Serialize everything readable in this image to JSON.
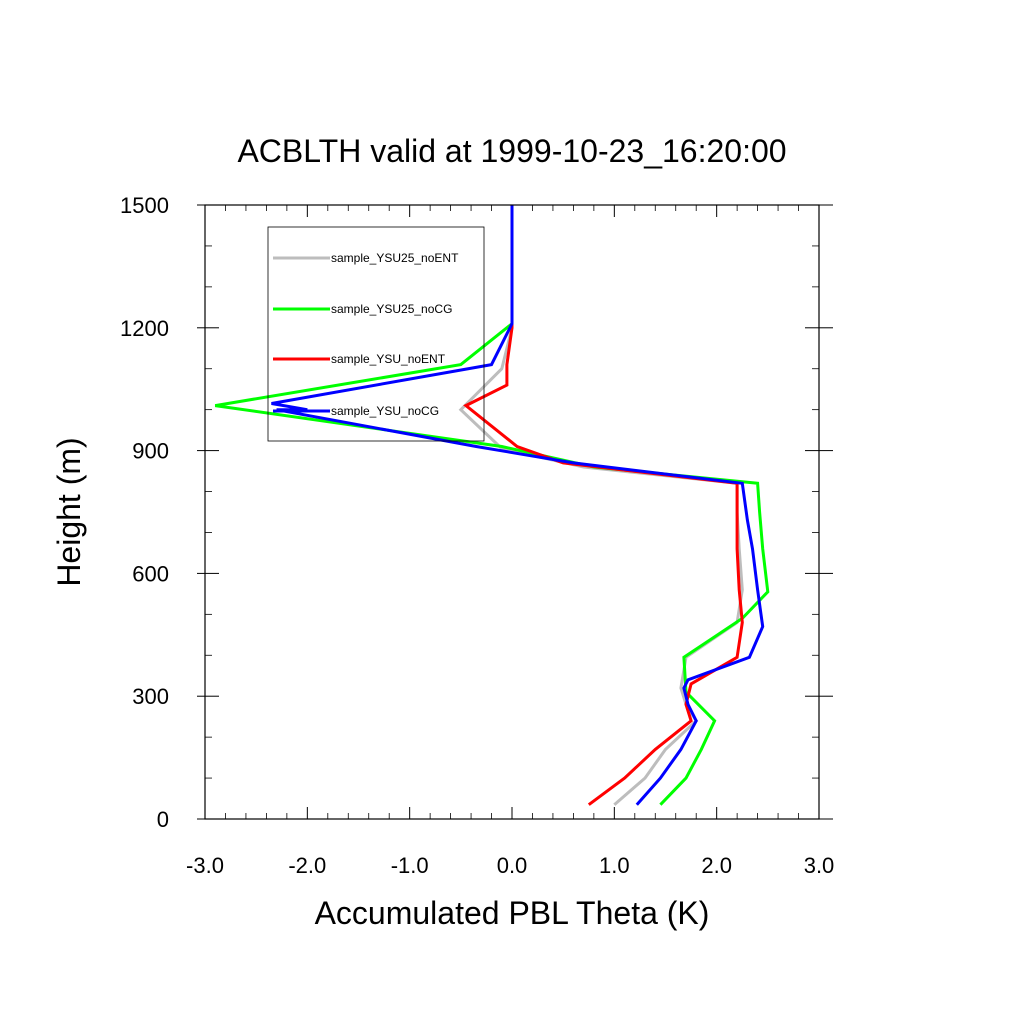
{
  "chart_data": {
    "type": "line",
    "title": "ACBLTH valid at 1999-10-23_16:20:00",
    "xlabel": "Accumulated PBL Theta (K)",
    "ylabel": "Height (m)",
    "xlim": [
      -3.0,
      3.0
    ],
    "ylim": [
      0,
      1500
    ],
    "x_ticks": [
      "-3.0",
      "-2.0",
      "-1.0",
      "0.0",
      "1.0",
      "2.0",
      "3.0"
    ],
    "y_ticks": [
      "0",
      "300",
      "600",
      "900",
      "1200",
      "1500"
    ],
    "grid": false,
    "legend_position": "top-left",
    "series": [
      {
        "name": "sample_YSU25_noENT",
        "color": "#bdbdbd",
        "points": [
          [
            1.0,
            35
          ],
          [
            1.3,
            100
          ],
          [
            1.5,
            170
          ],
          [
            1.8,
            240
          ],
          [
            1.7,
            280
          ],
          [
            1.65,
            320
          ],
          [
            1.7,
            395
          ],
          [
            2.2,
            480
          ],
          [
            2.25,
            560
          ],
          [
            2.22,
            660
          ],
          [
            2.2,
            750
          ],
          [
            2.2,
            820
          ],
          [
            0.7,
            860
          ],
          [
            -0.1,
            905
          ],
          [
            -0.5,
            1000
          ],
          [
            -0.1,
            1100
          ],
          [
            0.0,
            1200
          ],
          [
            0.0,
            1300
          ],
          [
            0.0,
            1500
          ]
        ]
      },
      {
        "name": "sample_YSU25_noCG",
        "color": "#00ff00",
        "points": [
          [
            1.45,
            35
          ],
          [
            1.7,
            100
          ],
          [
            1.85,
            170
          ],
          [
            1.98,
            240
          ],
          [
            1.7,
            310
          ],
          [
            1.68,
            395
          ],
          [
            2.25,
            490
          ],
          [
            2.5,
            555
          ],
          [
            2.45,
            660
          ],
          [
            2.42,
            750
          ],
          [
            2.4,
            820
          ],
          [
            0.8,
            860
          ],
          [
            -0.1,
            910
          ],
          [
            -2.9,
            1010
          ],
          [
            -0.5,
            1110
          ],
          [
            0.0,
            1210
          ],
          [
            0.0,
            1300
          ],
          [
            0.0,
            1500
          ]
        ]
      },
      {
        "name": "sample_YSU_noENT",
        "color": "#ff0000",
        "points": [
          [
            0.75,
            35
          ],
          [
            1.1,
            100
          ],
          [
            1.4,
            170
          ],
          [
            1.75,
            240
          ],
          [
            1.7,
            280
          ],
          [
            1.75,
            330
          ],
          [
            2.2,
            395
          ],
          [
            2.25,
            480
          ],
          [
            2.22,
            560
          ],
          [
            2.2,
            660
          ],
          [
            2.2,
            750
          ],
          [
            2.2,
            820
          ],
          [
            0.5,
            870
          ],
          [
            0.05,
            910
          ],
          [
            -0.45,
            1010
          ],
          [
            -0.05,
            1060
          ],
          [
            -0.05,
            1110
          ],
          [
            0.0,
            1200
          ],
          [
            0.0,
            1300
          ],
          [
            0.0,
            1500
          ]
        ]
      },
      {
        "name": "sample_YSU_noCG",
        "color": "#0000ff",
        "points": [
          [
            1.22,
            35
          ],
          [
            1.45,
            100
          ],
          [
            1.65,
            170
          ],
          [
            1.8,
            240
          ],
          [
            1.72,
            280
          ],
          [
            1.68,
            320
          ],
          [
            1.72,
            340
          ],
          [
            2.32,
            395
          ],
          [
            2.45,
            470
          ],
          [
            2.4,
            560
          ],
          [
            2.35,
            660
          ],
          [
            2.3,
            730
          ],
          [
            2.25,
            820
          ],
          [
            0.6,
            870
          ],
          [
            -0.35,
            910
          ],
          [
            -2.3,
            1000
          ],
          [
            -2.0,
            1000
          ],
          [
            -2.35,
            1015
          ],
          [
            -0.2,
            1110
          ],
          [
            0.0,
            1210
          ],
          [
            0.0,
            1300
          ],
          [
            0.0,
            1500
          ]
        ]
      }
    ]
  }
}
